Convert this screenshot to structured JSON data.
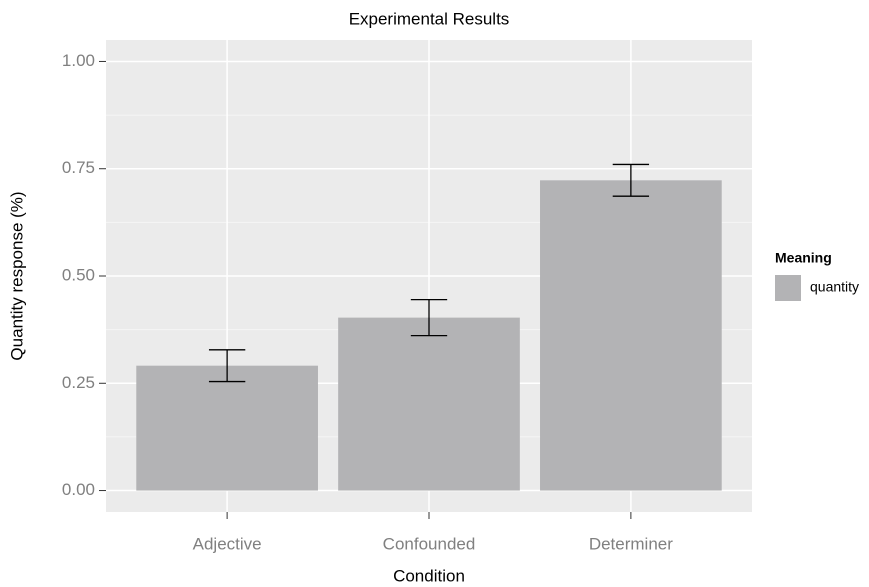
{
  "chart_data": {
    "type": "bar",
    "title": "Experimental Results",
    "x_label": "Condition",
    "y_label": "Quantity response (%)",
    "categories": [
      "Adjective",
      "Confounded",
      "Determiner"
    ],
    "series": [
      {
        "name": "quantity",
        "color": "#b3b3b5",
        "values": [
          0.291,
          0.403,
          0.723
        ],
        "errors": [
          0.037,
          0.042,
          0.037
        ]
      }
    ],
    "legend_title": "Meaning",
    "legend": "right",
    "ylim": [
      -0.05,
      1.05
    ],
    "yticks": [
      {
        "value": 0,
        "label": "0.00"
      },
      {
        "value": 0.25,
        "label": "0.25"
      },
      {
        "value": 0.5,
        "label": "0.50"
      },
      {
        "value": 0.75,
        "label": "0.75"
      },
      {
        "value": 1,
        "label": "1.00"
      }
    ],
    "grid": true
  }
}
